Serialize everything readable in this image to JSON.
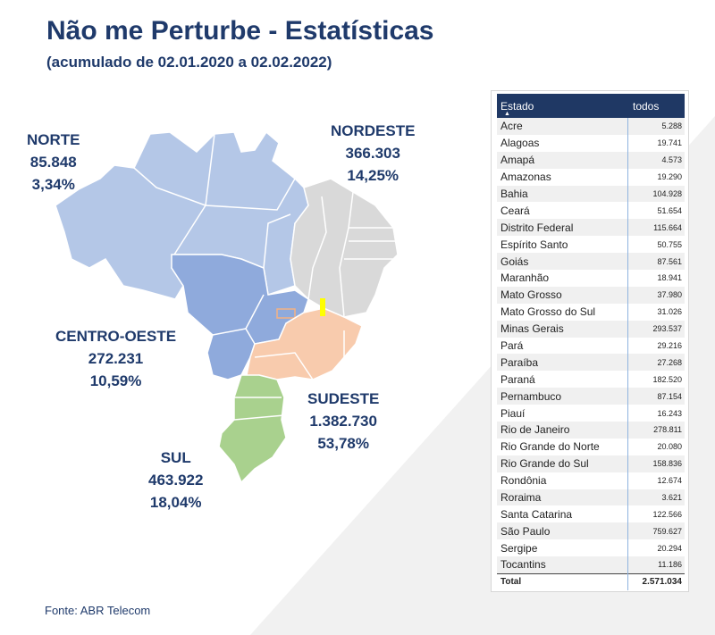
{
  "header": {
    "title": "Não me Perturbe - Estatísticas",
    "subtitle": "(acumulado de 02.01.2020 a 02.02.2022)"
  },
  "colors": {
    "norte": "#b4c7e7",
    "nordeste": "#d9d9d9",
    "centro_oeste": "#8faadc",
    "sudeste": "#f8cbad",
    "sul": "#a9d18e",
    "title": "#1f3a6b",
    "table_header": "#1f3864",
    "highlight": "#ffff00"
  },
  "regions": {
    "norte": {
      "name": "NORTE",
      "value": "85.848",
      "percent": "3,34%"
    },
    "nordeste": {
      "name": "NORDESTE",
      "value": "366.303",
      "percent": "14,25%"
    },
    "centro_oeste": {
      "name": "CENTRO-OESTE",
      "value": "272.231",
      "percent": "10,59%"
    },
    "sudeste": {
      "name": "SUDESTE",
      "value": "1.382.730",
      "percent": "53,78%"
    },
    "sul": {
      "name": "SUL",
      "value": "463.922",
      "percent": "18,04%"
    }
  },
  "table": {
    "col_state": "Estado",
    "col_value": "todos",
    "rows": [
      {
        "state": "Acre",
        "value": "5.288"
      },
      {
        "state": "Alagoas",
        "value": "19.741"
      },
      {
        "state": "Amapá",
        "value": "4.573"
      },
      {
        "state": "Amazonas",
        "value": "19.290"
      },
      {
        "state": "Bahia",
        "value": "104.928"
      },
      {
        "state": "Ceará",
        "value": "51.654"
      },
      {
        "state": "Distrito Federal",
        "value": "115.664"
      },
      {
        "state": "Espírito Santo",
        "value": "50.755"
      },
      {
        "state": "Goiás",
        "value": "87.561"
      },
      {
        "state": "Maranhão",
        "value": "18.941"
      },
      {
        "state": "Mato Grosso",
        "value": "37.980"
      },
      {
        "state": "Mato Grosso do Sul",
        "value": "31.026"
      },
      {
        "state": "Minas Gerais",
        "value": "293.537"
      },
      {
        "state": "Pará",
        "value": "29.216"
      },
      {
        "state": "Paraíba",
        "value": "27.268"
      },
      {
        "state": "Paraná",
        "value": "182.520"
      },
      {
        "state": "Pernambuco",
        "value": "87.154"
      },
      {
        "state": "Piauí",
        "value": "16.243"
      },
      {
        "state": "Rio de Janeiro",
        "value": "278.811"
      },
      {
        "state": "Rio Grande do Norte",
        "value": "20.080"
      },
      {
        "state": "Rio Grande do Sul",
        "value": "158.836"
      },
      {
        "state": "Rondônia",
        "value": "12.674"
      },
      {
        "state": "Roraima",
        "value": "3.621"
      },
      {
        "state": "Santa Catarina",
        "value": "122.566"
      },
      {
        "state": "São Paulo",
        "value": "759.627"
      },
      {
        "state": "Sergipe",
        "value": "20.294"
      },
      {
        "state": "Tocantins",
        "value": "11.186"
      }
    ],
    "total_label": "Total",
    "total_value": "2.571.034"
  },
  "footer": {
    "source": "Fonte: ABR Telecom"
  }
}
